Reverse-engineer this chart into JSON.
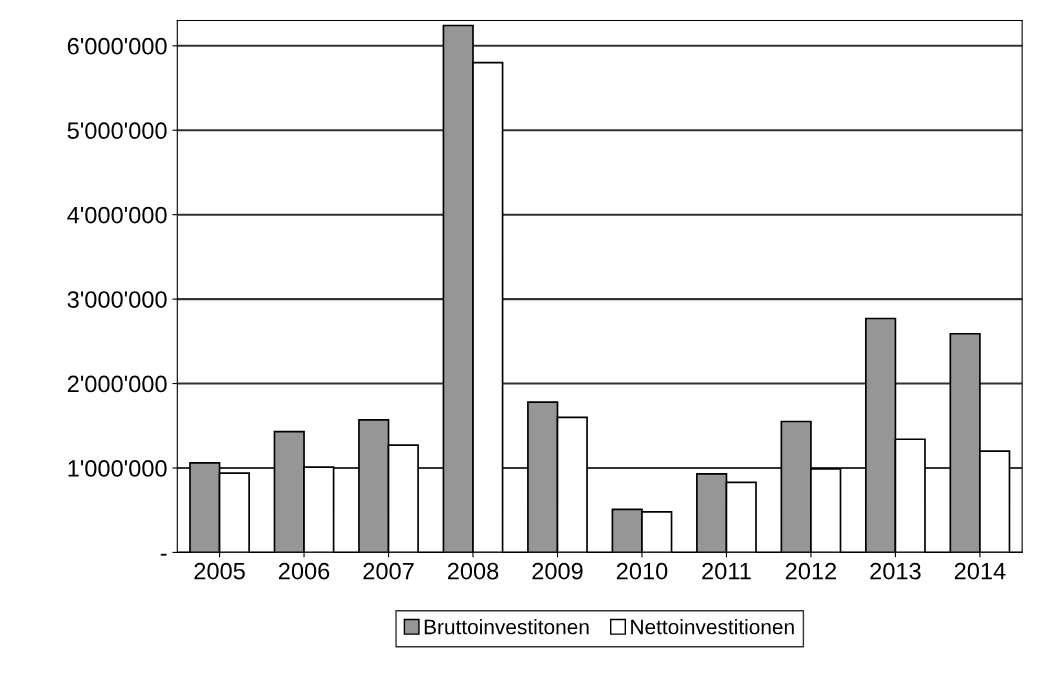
{
  "chart_data": {
    "type": "bar",
    "categories": [
      "2005",
      "2006",
      "2007",
      "2008",
      "2009",
      "2010",
      "2011",
      "2012",
      "2013",
      "2014"
    ],
    "series": [
      {
        "name": "Bruttoinvestitonen",
        "color": "#969696",
        "values": [
          1060000,
          1430000,
          1570000,
          6240000,
          1780000,
          510000,
          930000,
          1550000,
          2770000,
          2590000
        ]
      },
      {
        "name": "Nettoinvestitionen",
        "color": "#ffffff",
        "values": [
          940000,
          1010000,
          1270000,
          5800000,
          1600000,
          480000,
          830000,
          990000,
          1340000,
          1200000
        ]
      }
    ],
    "ylim": [
      0,
      6300000
    ],
    "yticks": [
      {
        "value": 0,
        "label": "-"
      },
      {
        "value": 1000000,
        "label": "1'000'000"
      },
      {
        "value": 2000000,
        "label": "2'000'000"
      },
      {
        "value": 3000000,
        "label": "3'000'000"
      },
      {
        "value": 4000000,
        "label": "4'000'000"
      },
      {
        "value": 5000000,
        "label": "5'000'000"
      },
      {
        "value": 6000000,
        "label": "6'000'000"
      }
    ],
    "grid": "y",
    "legend": "bottom"
  }
}
